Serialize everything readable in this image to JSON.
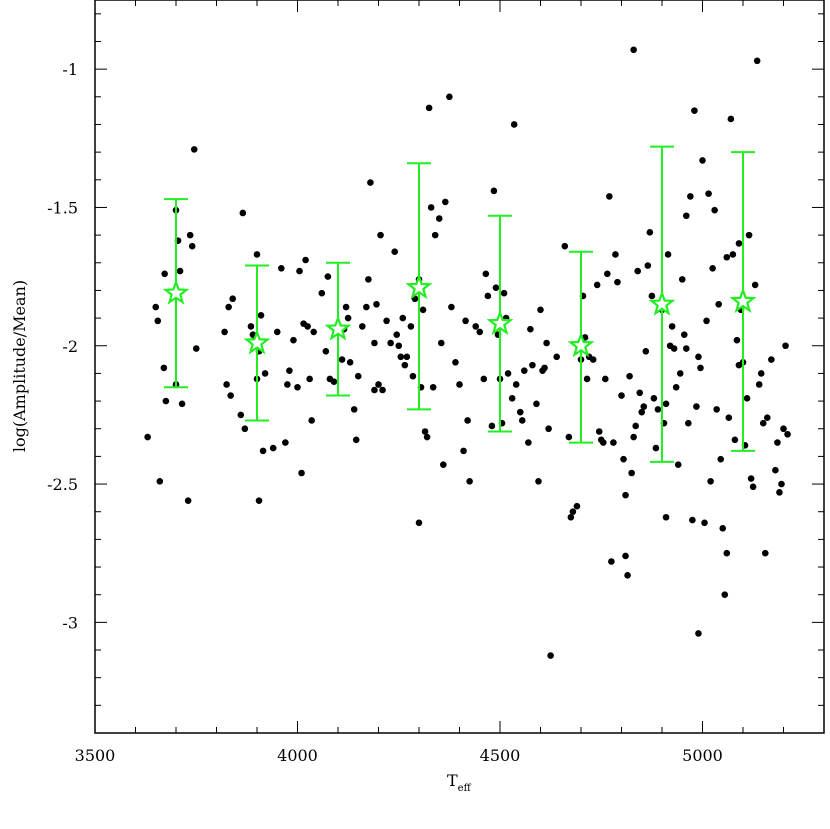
{
  "chart_data": {
    "type": "scatter",
    "title": "",
    "xlabel": "T",
    "xlabel_subscript": "eff",
    "ylabel": "log(Amplitude/Mean)",
    "xlim": [
      3500,
      5300
    ],
    "ylim": [
      -3.4,
      -0.75
    ],
    "x_ticks": [
      3500,
      4000,
      4500,
      5000
    ],
    "x_tick_labels": [
      "3500",
      "4000",
      "4500",
      "5000"
    ],
    "y_ticks": [
      -1,
      -1.5,
      -2,
      -2.5,
      -3
    ],
    "y_tick_labels": [
      "-1",
      "-1.5",
      "-2",
      "-2.5",
      "-3"
    ],
    "grid": false,
    "colors": {
      "points": "#000000",
      "binned": "#22ee22",
      "frame": "#000000"
    },
    "series": [
      {
        "marker": "dot",
        "points": [
          [
            3630,
            -2.33
          ],
          [
            3650,
            -1.86
          ],
          [
            3655,
            -1.91
          ],
          [
            3660,
            -2.49
          ],
          [
            3670,
            -2.08
          ],
          [
            3672,
            -1.74
          ],
          [
            3675,
            -2.2
          ],
          [
            3700,
            -1.51
          ],
          [
            3705,
            -1.62
          ],
          [
            3710,
            -1.73
          ],
          [
            3700,
            -2.14
          ],
          [
            3715,
            -2.21
          ],
          [
            3730,
            -2.56
          ],
          [
            3735,
            -1.6
          ],
          [
            3740,
            -1.64
          ],
          [
            3745,
            -1.29
          ],
          [
            3750,
            -2.01
          ],
          [
            3820,
            -1.95
          ],
          [
            3825,
            -2.14
          ],
          [
            3830,
            -1.86
          ],
          [
            3835,
            -2.18
          ],
          [
            3840,
            -1.83
          ],
          [
            3860,
            -2.25
          ],
          [
            3870,
            -2.3
          ],
          [
            3865,
            -1.52
          ],
          [
            3885,
            -1.93
          ],
          [
            3890,
            -1.96
          ],
          [
            3895,
            -1.98
          ],
          [
            3900,
            -2.12
          ],
          [
            3905,
            -2.02
          ],
          [
            3910,
            -1.89
          ],
          [
            3915,
            -2.38
          ],
          [
            3920,
            -2.1
          ],
          [
            3900,
            -1.67
          ],
          [
            3905,
            -2.56
          ],
          [
            3940,
            -2.37
          ],
          [
            3950,
            -1.95
          ],
          [
            3960,
            -1.72
          ],
          [
            3975,
            -2.14
          ],
          [
            3980,
            -2.09
          ],
          [
            3970,
            -2.35
          ],
          [
            3990,
            -1.98
          ],
          [
            4000,
            -2.15
          ],
          [
            4005,
            -1.73
          ],
          [
            4010,
            -2.46
          ],
          [
            4015,
            -1.92
          ],
          [
            4020,
            -1.69
          ],
          [
            4025,
            -1.93
          ],
          [
            4030,
            -2.12
          ],
          [
            4035,
            -2.27
          ],
          [
            4040,
            -1.95
          ],
          [
            4060,
            -1.81
          ],
          [
            4070,
            -2.02
          ],
          [
            4075,
            -1.75
          ],
          [
            4080,
            -2.12
          ],
          [
            4090,
            -2.13
          ],
          [
            4100,
            -1.94
          ],
          [
            4110,
            -2.05
          ],
          [
            4115,
            -1.94
          ],
          [
            4120,
            -1.86
          ],
          [
            4125,
            -1.9
          ],
          [
            4130,
            -2.06
          ],
          [
            4140,
            -2.23
          ],
          [
            4145,
            -2.34
          ],
          [
            4150,
            -2.11
          ],
          [
            4160,
            -1.93
          ],
          [
            4170,
            -1.86
          ],
          [
            4175,
            -1.76
          ],
          [
            4180,
            -1.41
          ],
          [
            4190,
            -1.99
          ],
          [
            4195,
            -1.85
          ],
          [
            4200,
            -2.14
          ],
          [
            4205,
            -1.6
          ],
          [
            4210,
            -2.16
          ],
          [
            4220,
            -1.91
          ],
          [
            4230,
            -1.99
          ],
          [
            4240,
            -1.66
          ],
          [
            4245,
            -1.96
          ],
          [
            4250,
            -2.0
          ],
          [
            4255,
            -2.04
          ],
          [
            4260,
            -1.9
          ],
          [
            4265,
            -2.07
          ],
          [
            4270,
            -2.04
          ],
          [
            4280,
            -1.93
          ],
          [
            4285,
            -2.11
          ],
          [
            4290,
            -1.83
          ],
          [
            4300,
            -1.76
          ],
          [
            4305,
            -2.15
          ],
          [
            4310,
            -1.87
          ],
          [
            4315,
            -2.31
          ],
          [
            4320,
            -2.33
          ],
          [
            4300,
            -2.64
          ],
          [
            4325,
            -1.14
          ],
          [
            4330,
            -1.5
          ],
          [
            4335,
            -2.15
          ],
          [
            4340,
            -1.6
          ],
          [
            4350,
            -1.54
          ],
          [
            4355,
            -1.99
          ],
          [
            4360,
            -2.43
          ],
          [
            4365,
            -1.48
          ],
          [
            4375,
            -1.1
          ],
          [
            4380,
            -1.86
          ],
          [
            4390,
            -2.06
          ],
          [
            4400,
            -2.14
          ],
          [
            4410,
            -2.38
          ],
          [
            4415,
            -1.91
          ],
          [
            4420,
            -2.27
          ],
          [
            4425,
            -2.49
          ],
          [
            4440,
            -1.93
          ],
          [
            4450,
            -1.95
          ],
          [
            4460,
            -2.12
          ],
          [
            4465,
            -1.74
          ],
          [
            4470,
            -1.82
          ],
          [
            4480,
            -2.29
          ],
          [
            4485,
            -1.44
          ],
          [
            4490,
            -1.79
          ],
          [
            4495,
            -1.96
          ],
          [
            4500,
            -2.12
          ],
          [
            4505,
            -2.28
          ],
          [
            4510,
            -1.81
          ],
          [
            4515,
            -1.9
          ],
          [
            4520,
            -2.1
          ],
          [
            4530,
            -2.19
          ],
          [
            4535,
            -1.2
          ],
          [
            4540,
            -2.14
          ],
          [
            4550,
            -2.24
          ],
          [
            4555,
            -2.27
          ],
          [
            4560,
            -2.09
          ],
          [
            4570,
            -2.35
          ],
          [
            4575,
            -1.94
          ],
          [
            4580,
            -2.07
          ],
          [
            4590,
            -2.21
          ],
          [
            4595,
            -2.49
          ],
          [
            4600,
            -1.87
          ],
          [
            4605,
            -2.09
          ],
          [
            4610,
            -2.08
          ],
          [
            4615,
            -1.99
          ],
          [
            4620,
            -2.3
          ],
          [
            4625,
            -3.12
          ],
          [
            4640,
            -2.04
          ],
          [
            4660,
            -1.64
          ],
          [
            4670,
            -2.33
          ],
          [
            4675,
            -2.62
          ],
          [
            4680,
            -2.6
          ],
          [
            4690,
            -2.58
          ],
          [
            4700,
            -2.05
          ],
          [
            4705,
            -1.82
          ],
          [
            4710,
            -1.97
          ],
          [
            4715,
            -2.12
          ],
          [
            4720,
            -2.04
          ],
          [
            4730,
            -2.05
          ],
          [
            4740,
            -1.78
          ],
          [
            4745,
            -2.31
          ],
          [
            4750,
            -2.34
          ],
          [
            4755,
            -2.35
          ],
          [
            4760,
            -2.12
          ],
          [
            4765,
            -1.74
          ],
          [
            4770,
            -1.46
          ],
          [
            4775,
            -2.78
          ],
          [
            4780,
            -2.35
          ],
          [
            4785,
            -1.67
          ],
          [
            4790,
            -1.77
          ],
          [
            4800,
            -2.18
          ],
          [
            4805,
            -2.41
          ],
          [
            4810,
            -2.76
          ],
          [
            4815,
            -2.83
          ],
          [
            4820,
            -2.11
          ],
          [
            4825,
            -2.46
          ],
          [
            4830,
            -2.33
          ],
          [
            4835,
            -2.29
          ],
          [
            4840,
            -1.73
          ],
          [
            4845,
            -2.17
          ],
          [
            4850,
            -2.24
          ],
          [
            4855,
            -2.22
          ],
          [
            4860,
            -2.02
          ],
          [
            4865,
            -1.71
          ],
          [
            4870,
            -1.59
          ],
          [
            4875,
            -1.82
          ],
          [
            4880,
            -2.19
          ],
          [
            4885,
            -2.37
          ],
          [
            4890,
            -2.23
          ],
          [
            4900,
            -1.87
          ],
          [
            4905,
            -2.28
          ],
          [
            4910,
            -2.62
          ],
          [
            4915,
            -1.67
          ],
          [
            4920,
            -2.0
          ],
          [
            4925,
            -1.93
          ],
          [
            4930,
            -2.01
          ],
          [
            4935,
            -2.15
          ],
          [
            4940,
            -2.43
          ],
          [
            4945,
            -2.1
          ],
          [
            4950,
            -1.76
          ],
          [
            4955,
            -1.96
          ],
          [
            4960,
            -1.53
          ],
          [
            4965,
            -2.28
          ],
          [
            4970,
            -1.46
          ],
          [
            4975,
            -2.63
          ],
          [
            4980,
            -1.15
          ],
          [
            4985,
            -2.22
          ],
          [
            4990,
            -2.04
          ],
          [
            4995,
            -2.08
          ],
          [
            5000,
            -1.33
          ],
          [
            5005,
            -2.64
          ],
          [
            5010,
            -1.91
          ],
          [
            5015,
            -1.45
          ],
          [
            5020,
            -2.49
          ],
          [
            5025,
            -1.72
          ],
          [
            5030,
            -1.51
          ],
          [
            5035,
            -2.23
          ],
          [
            5040,
            -1.85
          ],
          [
            5045,
            -2.41
          ],
          [
            5050,
            -2.66
          ],
          [
            5055,
            -2.9
          ],
          [
            5060,
            -2.75
          ],
          [
            5065,
            -2.26
          ],
          [
            5070,
            -1.18
          ],
          [
            5075,
            -1.67
          ],
          [
            5080,
            -2.34
          ],
          [
            5085,
            -1.98
          ],
          [
            5090,
            -2.07
          ],
          [
            5095,
            -1.87
          ],
          [
            5100,
            -2.06
          ],
          [
            5105,
            -2.36
          ],
          [
            5110,
            -2.19
          ],
          [
            5115,
            -1.6
          ],
          [
            5120,
            -2.48
          ],
          [
            5125,
            -2.51
          ],
          [
            5130,
            -1.78
          ],
          [
            5135,
            -0.97
          ],
          [
            5140,
            -2.14
          ],
          [
            5145,
            -2.1
          ],
          [
            5150,
            -2.28
          ],
          [
            5155,
            -2.75
          ],
          [
            5160,
            -2.26
          ],
          [
            5170,
            -2.05
          ],
          [
            5180,
            -2.45
          ],
          [
            5185,
            -2.35
          ],
          [
            5190,
            -2.53
          ],
          [
            5195,
            -2.5
          ],
          [
            5200,
            -2.3
          ],
          [
            5205,
            -2.0
          ],
          [
            5210,
            -2.32
          ],
          [
            4810,
            -2.54
          ],
          [
            4830,
            -0.93
          ],
          [
            4990,
            -3.04
          ],
          [
            5060,
            -1.68
          ],
          [
            5090,
            -1.63
          ],
          [
            4960,
            -2.01
          ],
          [
            4910,
            -2.21
          ],
          [
            4190,
            -2.16
          ]
        ]
      },
      {
        "marker": "star-with-errorbar",
        "points": [
          {
            "x": 3700,
            "y": -1.81,
            "ylow": -2.15,
            "yhigh": -1.47
          },
          {
            "x": 3900,
            "y": -1.99,
            "ylow": -2.27,
            "yhigh": -1.71
          },
          {
            "x": 4100,
            "y": -1.94,
            "ylow": -2.18,
            "yhigh": -1.7
          },
          {
            "x": 4300,
            "y": -1.79,
            "ylow": -2.23,
            "yhigh": -1.34
          },
          {
            "x": 4500,
            "y": -1.92,
            "ylow": -2.31,
            "yhigh": -1.53
          },
          {
            "x": 4700,
            "y": -2.0,
            "ylow": -2.35,
            "yhigh": -1.66
          },
          {
            "x": 4900,
            "y": -1.85,
            "ylow": -2.42,
            "yhigh": -1.28
          },
          {
            "x": 5100,
            "y": -1.84,
            "ylow": -2.38,
            "yhigh": -1.3
          }
        ]
      }
    ]
  }
}
